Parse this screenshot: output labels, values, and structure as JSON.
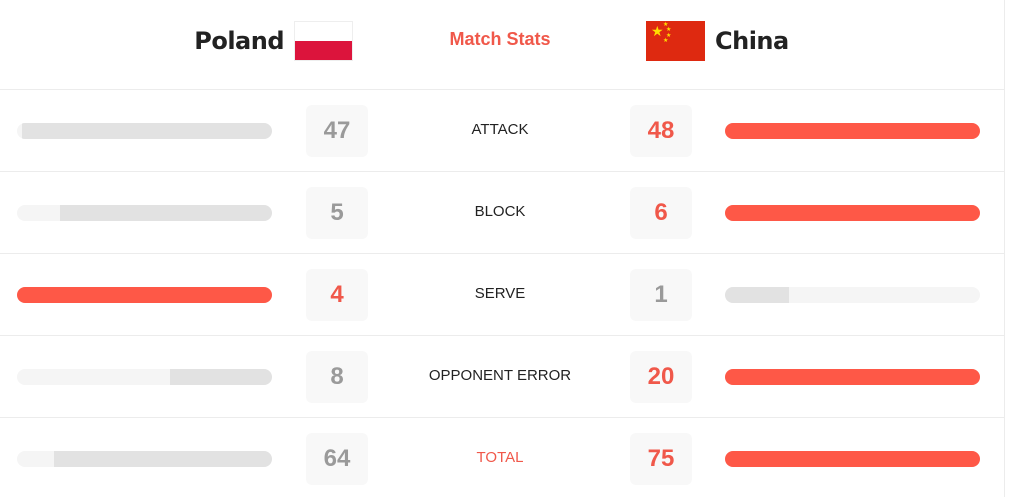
{
  "header": {
    "home_team": "Poland",
    "away_team": "China",
    "title": "Match Stats"
  },
  "colors": {
    "accent": "#fe5847",
    "muted_fill": "#e2e2e2",
    "track": "#f5f5f5"
  },
  "stats": [
    {
      "label": "ATTACK",
      "home": 47,
      "away": 48
    },
    {
      "label": "BLOCK",
      "home": 5,
      "away": 6
    },
    {
      "label": "SERVE",
      "home": 4,
      "away": 1
    },
    {
      "label": "OPPONENT ERROR",
      "home": 8,
      "away": 20
    },
    {
      "label": "TOTAL",
      "home": 64,
      "away": 75
    }
  ]
}
